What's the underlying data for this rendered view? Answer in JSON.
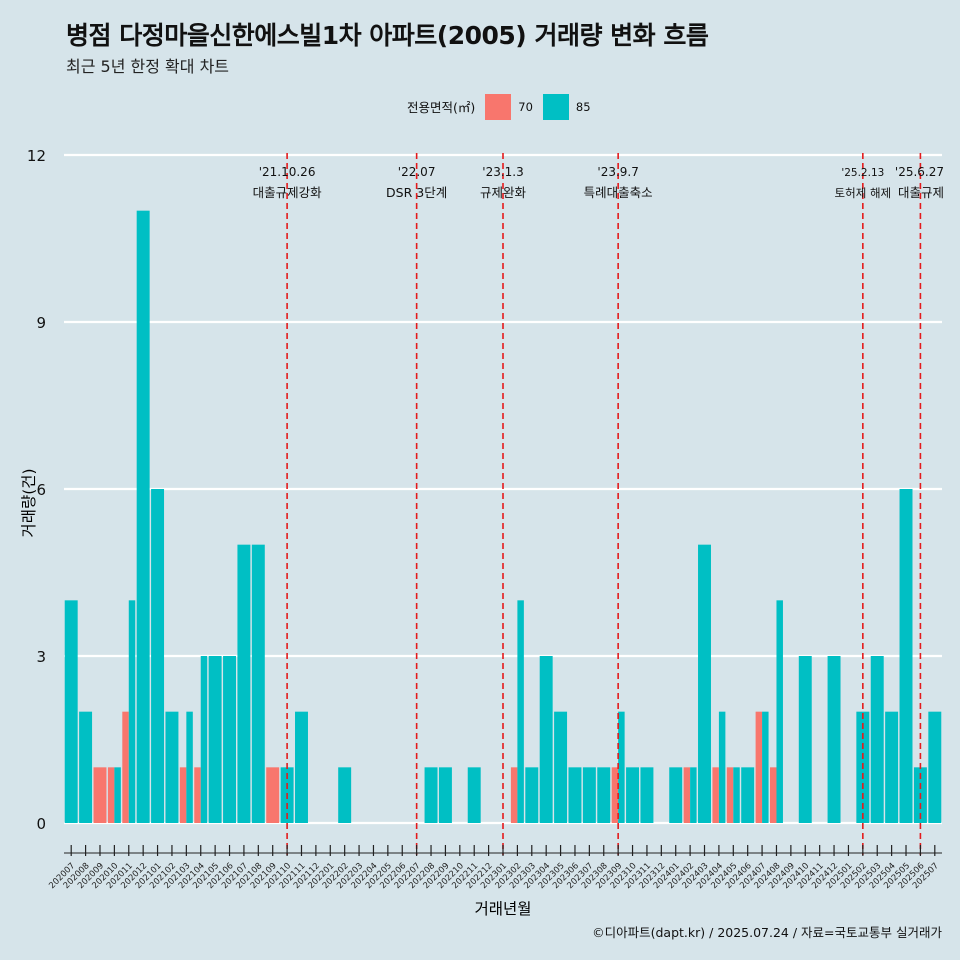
{
  "page": {
    "title": "병점 다정마을신한에스빌1차 아파트(2005) 거래량 변화 흐름",
    "subtitle": "최근 5년 한정 확대 차트",
    "credit": "©디아파트(dapt.kr) / 2025.07.24 / 자료=국토교통부 실거래가"
  },
  "legend": {
    "title": "전용면적(㎡)",
    "items": [
      {
        "label": "70",
        "color": "#F8766D"
      },
      {
        "label": "85",
        "color": "#00BFC4"
      }
    ]
  },
  "chart_data": {
    "type": "bar",
    "stacked": false,
    "position": "dodge",
    "xlabel": "거래년월",
    "ylabel": "거래량(건)",
    "ylim": [
      0,
      12
    ],
    "yticks": [
      0,
      3,
      6,
      9,
      12
    ],
    "grid": true,
    "legend_position": "top",
    "categories": [
      "202007",
      "202008",
      "202009",
      "202010",
      "202011",
      "202012",
      "202101",
      "202102",
      "202103",
      "202104",
      "202105",
      "202106",
      "202107",
      "202108",
      "202109",
      "202110",
      "202111",
      "202112",
      "202201",
      "202202",
      "202203",
      "202204",
      "202205",
      "202206",
      "202207",
      "202208",
      "202209",
      "202210",
      "202211",
      "202212",
      "202301",
      "202302",
      "202303",
      "202304",
      "202305",
      "202306",
      "202307",
      "202308",
      "202309",
      "202310",
      "202311",
      "202312",
      "202401",
      "202402",
      "202403",
      "202404",
      "202405",
      "202406",
      "202407",
      "202408",
      "202409",
      "202410",
      "202411",
      "202412",
      "202501",
      "202502",
      "202503",
      "202504",
      "202505",
      "202506",
      "202507"
    ],
    "series": [
      {
        "name": "70",
        "color": "#F8766D",
        "values": [
          0,
          0,
          1,
          1,
          2,
          0,
          0,
          0,
          1,
          1,
          0,
          0,
          0,
          0,
          1,
          0,
          0,
          0,
          0,
          0,
          0,
          0,
          0,
          0,
          0,
          0,
          0,
          0,
          0,
          0,
          0,
          1,
          0,
          0,
          0,
          0,
          0,
          0,
          1,
          0,
          0,
          0,
          0,
          1,
          0,
          1,
          1,
          0,
          2,
          1,
          0,
          0,
          0,
          0,
          0,
          0,
          0,
          0,
          0,
          0,
          0
        ]
      },
      {
        "name": "85",
        "color": "#00BFC4",
        "values": [
          4,
          2,
          0,
          1,
          4,
          11,
          6,
          2,
          2,
          3,
          3,
          3,
          5,
          5,
          0,
          1,
          2,
          0,
          0,
          1,
          0,
          0,
          0,
          0,
          0,
          1,
          1,
          0,
          1,
          0,
          0,
          4,
          1,
          3,
          2,
          1,
          1,
          1,
          2,
          1,
          1,
          0,
          1,
          1,
          5,
          2,
          1,
          1,
          2,
          4,
          0,
          3,
          0,
          3,
          0,
          2,
          3,
          2,
          6,
          1,
          2
        ]
      }
    ],
    "events": [
      {
        "date": "'21.10.26",
        "label": "대출규제강화",
        "month": "202110"
      },
      {
        "date": "'22.07",
        "label": "DSR 3단계",
        "month": "202207"
      },
      {
        "date": "'23.1.3",
        "label": "규제완화",
        "month": "202301"
      },
      {
        "date": "'23.9.7",
        "label": "특례대출축소",
        "month": "202309"
      },
      {
        "date": "'25.2.13",
        "label": "토허제 해제",
        "month": "202502"
      },
      {
        "date": "'25.6.27",
        "label": "대출규제",
        "month": "202506"
      }
    ]
  }
}
